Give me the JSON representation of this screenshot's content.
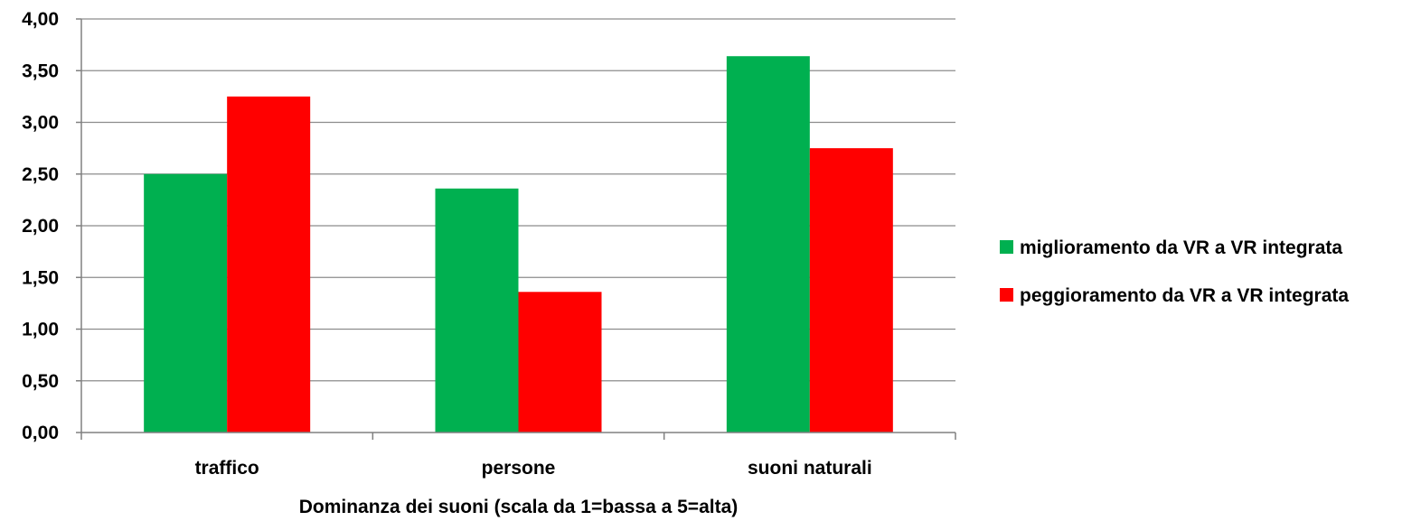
{
  "chart_data": {
    "type": "bar",
    "title": "",
    "xlabel": "Dominanza dei suoni (scala da 1=bassa a 5=alta)",
    "ylabel": "",
    "categories": [
      "traffico",
      "persone",
      "suoni naturali"
    ],
    "series": [
      {
        "name": "miglioramento da VR a VR integrata",
        "color": "#00b050",
        "values": [
          2.5,
          2.36,
          3.64
        ]
      },
      {
        "name": "peggioramento da VR a VR integrata",
        "color": "#ff0000",
        "values": [
          3.25,
          1.36,
          2.75
        ]
      }
    ],
    "ylim": [
      0,
      4
    ],
    "yticks": [
      "0,00",
      "0,50",
      "1,00",
      "1,50",
      "2,00",
      "2,50",
      "3,00",
      "3,50",
      "4,00"
    ],
    "ytick_values": [
      0,
      0.5,
      1,
      1.5,
      2,
      2.5,
      3,
      3.5,
      4
    ],
    "grid": true,
    "legend": "right"
  }
}
